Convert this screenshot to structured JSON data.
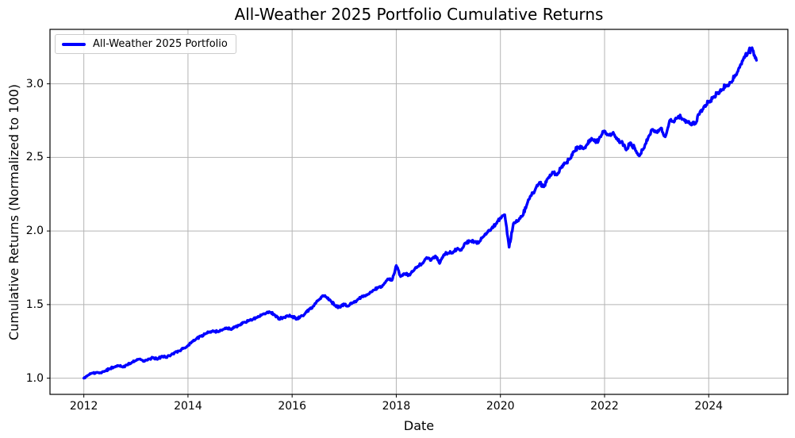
{
  "chart_data": {
    "type": "line",
    "title": "All-Weather 2025 Portfolio Cumulative Returns",
    "xlabel": "Date",
    "ylabel": "Cumulative Returns (Normalized to 100)",
    "legend": [
      "All-Weather 2025 Portfolio"
    ],
    "legend_position": "upper left",
    "grid": true,
    "line_color": "#0000ff",
    "grid_color": "#b4b4b4",
    "spine_color": "#000000",
    "xlim": [
      2011.35,
      2025.52
    ],
    "ylim": [
      0.89,
      3.37
    ],
    "xticks": [
      2012,
      2014,
      2016,
      2018,
      2020,
      2022,
      2024
    ],
    "xtick_labels": [
      "2012",
      "2014",
      "2016",
      "2018",
      "2020",
      "2022",
      "2024"
    ],
    "yticks": [
      1.0,
      1.5,
      2.0,
      2.5,
      3.0
    ],
    "ytick_labels": [
      "1.0",
      "1.5",
      "2.0",
      "2.5",
      "3.0"
    ],
    "series": [
      {
        "name": "All-Weather 2025 Portfolio",
        "points": [
          {
            "date": "2012-01",
            "value": 1.0
          },
          {
            "date": "2012-02",
            "value": 1.02
          },
          {
            "date": "2012-03",
            "value": 1.035
          },
          {
            "date": "2012-04",
            "value": 1.04
          },
          {
            "date": "2012-05",
            "value": 1.035
          },
          {
            "date": "2012-06",
            "value": 1.05
          },
          {
            "date": "2012-07",
            "value": 1.065
          },
          {
            "date": "2012-08",
            "value": 1.075
          },
          {
            "date": "2012-09",
            "value": 1.085
          },
          {
            "date": "2012-10",
            "value": 1.075
          },
          {
            "date": "2012-11",
            "value": 1.09
          },
          {
            "date": "2012-12",
            "value": 1.105
          },
          {
            "date": "2013-01",
            "value": 1.12
          },
          {
            "date": "2013-02",
            "value": 1.13
          },
          {
            "date": "2013-03",
            "value": 1.115
          },
          {
            "date": "2013-04",
            "value": 1.13
          },
          {
            "date": "2013-05",
            "value": 1.14
          },
          {
            "date": "2013-06",
            "value": 1.128
          },
          {
            "date": "2013-07",
            "value": 1.15
          },
          {
            "date": "2013-08",
            "value": 1.14
          },
          {
            "date": "2013-09",
            "value": 1.155
          },
          {
            "date": "2013-10",
            "value": 1.175
          },
          {
            "date": "2013-11",
            "value": 1.185
          },
          {
            "date": "2013-12",
            "value": 1.205
          },
          {
            "date": "2014-01",
            "value": 1.22
          },
          {
            "date": "2014-02",
            "value": 1.25
          },
          {
            "date": "2014-03",
            "value": 1.27
          },
          {
            "date": "2014-04",
            "value": 1.285
          },
          {
            "date": "2014-05",
            "value": 1.3
          },
          {
            "date": "2014-06",
            "value": 1.315
          },
          {
            "date": "2014-07",
            "value": 1.32
          },
          {
            "date": "2014-08",
            "value": 1.315
          },
          {
            "date": "2014-09",
            "value": 1.33
          },
          {
            "date": "2014-10",
            "value": 1.34
          },
          {
            "date": "2014-11",
            "value": 1.33
          },
          {
            "date": "2014-12",
            "value": 1.35
          },
          {
            "date": "2015-01",
            "value": 1.36
          },
          {
            "date": "2015-02",
            "value": 1.38
          },
          {
            "date": "2015-03",
            "value": 1.39
          },
          {
            "date": "2015-04",
            "value": 1.4
          },
          {
            "date": "2015-05",
            "value": 1.413
          },
          {
            "date": "2015-06",
            "value": 1.43
          },
          {
            "date": "2015-07",
            "value": 1.442
          },
          {
            "date": "2015-08",
            "value": 1.447
          },
          {
            "date": "2015-09",
            "value": 1.43
          },
          {
            "date": "2015-10",
            "value": 1.4
          },
          {
            "date": "2015-11",
            "value": 1.414
          },
          {
            "date": "2015-12",
            "value": 1.422
          },
          {
            "date": "2016-01",
            "value": 1.42
          },
          {
            "date": "2016-02",
            "value": 1.4
          },
          {
            "date": "2016-03",
            "value": 1.42
          },
          {
            "date": "2016-04",
            "value": 1.44
          },
          {
            "date": "2016-05",
            "value": 1.468
          },
          {
            "date": "2016-06",
            "value": 1.49
          },
          {
            "date": "2016-07",
            "value": 1.53
          },
          {
            "date": "2016-08",
            "value": 1.56
          },
          {
            "date": "2016-09",
            "value": 1.548
          },
          {
            "date": "2016-10",
            "value": 1.52
          },
          {
            "date": "2016-11",
            "value": 1.49
          },
          {
            "date": "2016-12",
            "value": 1.482
          },
          {
            "date": "2017-01",
            "value": 1.504
          },
          {
            "date": "2017-02",
            "value": 1.49
          },
          {
            "date": "2017-03",
            "value": 1.513
          },
          {
            "date": "2017-04",
            "value": 1.53
          },
          {
            "date": "2017-05",
            "value": 1.554
          },
          {
            "date": "2017-06",
            "value": 1.561
          },
          {
            "date": "2017-07",
            "value": 1.585
          },
          {
            "date": "2017-08",
            "value": 1.6
          },
          {
            "date": "2017-09",
            "value": 1.62
          },
          {
            "date": "2017-10",
            "value": 1.633
          },
          {
            "date": "2017-11",
            "value": 1.674
          },
          {
            "date": "2017-12",
            "value": 1.665
          },
          {
            "date": "2018-01",
            "value": 1.765
          },
          {
            "date": "2018-02",
            "value": 1.69
          },
          {
            "date": "2018-03",
            "value": 1.71
          },
          {
            "date": "2018-04",
            "value": 1.7
          },
          {
            "date": "2018-05",
            "value": 1.73
          },
          {
            "date": "2018-06",
            "value": 1.76
          },
          {
            "date": "2018-07",
            "value": 1.78
          },
          {
            "date": "2018-08",
            "value": 1.82
          },
          {
            "date": "2018-09",
            "value": 1.8
          },
          {
            "date": "2018-10",
            "value": 1.83
          },
          {
            "date": "2018-11",
            "value": 1.78
          },
          {
            "date": "2018-12",
            "value": 1.84
          },
          {
            "date": "2019-01",
            "value": 1.85
          },
          {
            "date": "2019-02",
            "value": 1.85
          },
          {
            "date": "2019-03",
            "value": 1.88
          },
          {
            "date": "2019-04",
            "value": 1.87
          },
          {
            "date": "2019-05",
            "value": 1.92
          },
          {
            "date": "2019-06",
            "value": 1.93
          },
          {
            "date": "2019-07",
            "value": 1.925
          },
          {
            "date": "2019-08",
            "value": 1.92
          },
          {
            "date": "2019-09",
            "value": 1.96
          },
          {
            "date": "2019-10",
            "value": 1.99
          },
          {
            "date": "2019-11",
            "value": 2.02
          },
          {
            "date": "2019-12",
            "value": 2.05
          },
          {
            "date": "2020-01",
            "value": 2.09
          },
          {
            "date": "2020-02",
            "value": 2.11
          },
          {
            "date": "2020-03",
            "value": 1.89
          },
          {
            "date": "2020-04",
            "value": 2.05
          },
          {
            "date": "2020-05",
            "value": 2.07
          },
          {
            "date": "2020-06",
            "value": 2.1
          },
          {
            "date": "2020-07",
            "value": 2.17
          },
          {
            "date": "2020-08",
            "value": 2.24
          },
          {
            "date": "2020-09",
            "value": 2.28
          },
          {
            "date": "2020-10",
            "value": 2.33
          },
          {
            "date": "2020-11",
            "value": 2.3
          },
          {
            "date": "2020-12",
            "value": 2.36
          },
          {
            "date": "2021-01",
            "value": 2.4
          },
          {
            "date": "2021-02",
            "value": 2.38
          },
          {
            "date": "2021-03",
            "value": 2.43
          },
          {
            "date": "2021-04",
            "value": 2.46
          },
          {
            "date": "2021-05",
            "value": 2.49
          },
          {
            "date": "2021-06",
            "value": 2.54
          },
          {
            "date": "2021-07",
            "value": 2.57
          },
          {
            "date": "2021-08",
            "value": 2.56
          },
          {
            "date": "2021-09",
            "value": 2.59
          },
          {
            "date": "2021-10",
            "value": 2.63
          },
          {
            "date": "2021-11",
            "value": 2.6
          },
          {
            "date": "2021-12",
            "value": 2.64
          },
          {
            "date": "2022-01",
            "value": 2.68
          },
          {
            "date": "2022-02",
            "value": 2.65
          },
          {
            "date": "2022-03",
            "value": 2.67
          },
          {
            "date": "2022-04",
            "value": 2.62
          },
          {
            "date": "2022-05",
            "value": 2.61
          },
          {
            "date": "2022-06",
            "value": 2.55
          },
          {
            "date": "2022-07",
            "value": 2.6
          },
          {
            "date": "2022-08",
            "value": 2.56
          },
          {
            "date": "2022-09",
            "value": 2.51
          },
          {
            "date": "2022-10",
            "value": 2.56
          },
          {
            "date": "2022-11",
            "value": 2.63
          },
          {
            "date": "2022-12",
            "value": 2.69
          },
          {
            "date": "2023-01",
            "value": 2.67
          },
          {
            "date": "2023-02",
            "value": 2.7
          },
          {
            "date": "2023-03",
            "value": 2.64
          },
          {
            "date": "2023-04",
            "value": 2.75
          },
          {
            "date": "2023-05",
            "value": 2.74
          },
          {
            "date": "2023-06",
            "value": 2.78
          },
          {
            "date": "2023-07",
            "value": 2.76
          },
          {
            "date": "2023-08",
            "value": 2.74
          },
          {
            "date": "2023-09",
            "value": 2.72
          },
          {
            "date": "2023-10",
            "value": 2.73
          },
          {
            "date": "2023-11",
            "value": 2.81
          },
          {
            "date": "2023-12",
            "value": 2.85
          },
          {
            "date": "2024-01",
            "value": 2.88
          },
          {
            "date": "2024-02",
            "value": 2.91
          },
          {
            "date": "2024-03",
            "value": 2.94
          },
          {
            "date": "2024-04",
            "value": 2.96
          },
          {
            "date": "2024-05",
            "value": 2.99
          },
          {
            "date": "2024-06",
            "value": 3.01
          },
          {
            "date": "2024-07",
            "value": 3.05
          },
          {
            "date": "2024-08",
            "value": 3.11
          },
          {
            "date": "2024-09",
            "value": 3.17
          },
          {
            "date": "2024-10",
            "value": 3.21
          },
          {
            "date": "2024-11",
            "value": 3.245
          },
          {
            "date": "2024-12",
            "value": 3.16
          }
        ]
      }
    ]
  }
}
